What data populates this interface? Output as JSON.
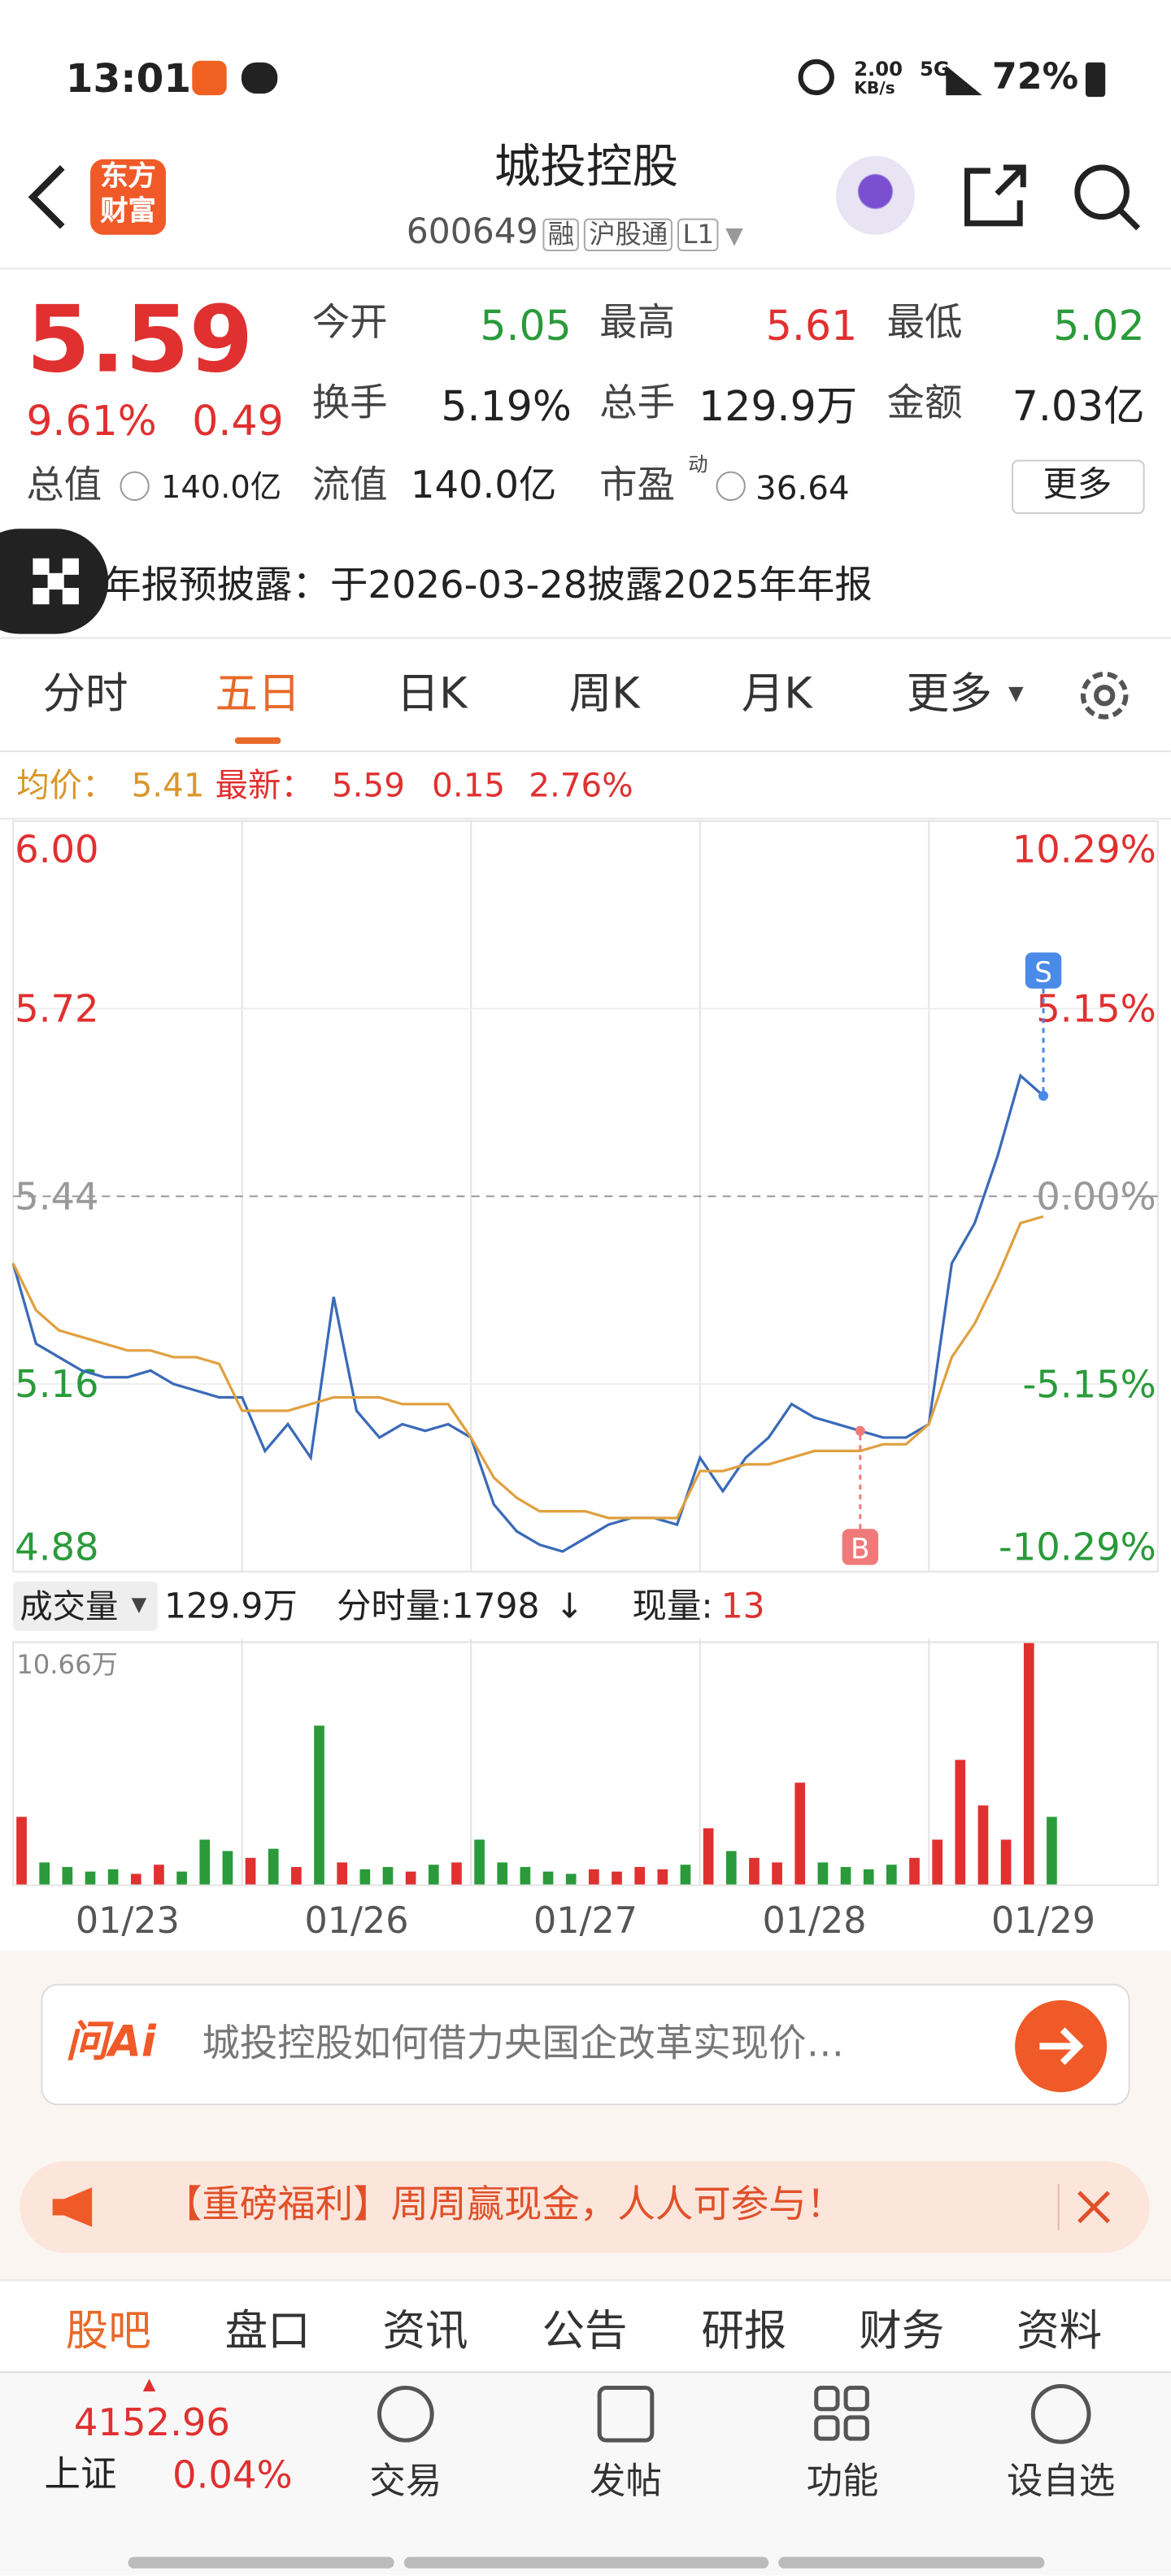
{
  "status_bar": {
    "time": "13:01",
    "speed": "2.00",
    "speed_unit": "KB/s",
    "network": "5G",
    "battery": "72%"
  },
  "header": {
    "logo_top": "东方",
    "logo_bottom": "财富",
    "title": "城投控股",
    "code": "600649",
    "tags": [
      "融",
      "沪股通",
      "L1"
    ]
  },
  "quote": {
    "price": "5.59",
    "change_pct": "9.61%",
    "change": "0.49",
    "fields": [
      {
        "label": "今开",
        "value": "5.05",
        "color": "#2a9a3a"
      },
      {
        "label": "最高",
        "value": "5.61",
        "color": "#e03030"
      },
      {
        "label": "最低",
        "value": "5.02",
        "color": "#2a9a3a"
      },
      {
        "label": "换手",
        "value": "5.19%",
        "color": "#222222"
      },
      {
        "label": "总手",
        "value": "129.9万",
        "color": "#222222"
      },
      {
        "label": "金额",
        "value": "7.03亿",
        "color": "#222222"
      }
    ],
    "total_value_label": "总值",
    "total_value": "140.0亿",
    "float_value_label": "流值",
    "float_value": "140.0亿",
    "pe_label": "市盈",
    "pe_sup": "动",
    "pe_value": "36.64",
    "more": "更多"
  },
  "notice": "年报预披露：于2026-03-28披露2025年年报",
  "tabs": {
    "items": [
      "分时",
      "五日",
      "日K",
      "周K",
      "月K",
      "更多"
    ],
    "active": 1
  },
  "price_info": {
    "avg_label": "均价：",
    "avg": "5.41",
    "latest_label": "最新：",
    "latest": "5.59",
    "change": "0.15",
    "change_pct": "2.76%"
  },
  "chart_data": [
    {
      "type": "line",
      "x": [
        0,
        1,
        2,
        3,
        4,
        5,
        6,
        7,
        8,
        9,
        10,
        11,
        12,
        13,
        14,
        15,
        16,
        17,
        18,
        19,
        20,
        21,
        22,
        23,
        24,
        25,
        26,
        27,
        28,
        29,
        30,
        31,
        32,
        33,
        34,
        35,
        36,
        37,
        38,
        39,
        40,
        41,
        42,
        43,
        44,
        45
      ],
      "xlim": [
        0,
        50
      ],
      "series": [
        {
          "name": "价格",
          "color": "#3a6ab8",
          "values": [
            5.34,
            5.22,
            5.2,
            5.18,
            5.17,
            5.17,
            5.18,
            5.16,
            5.15,
            5.14,
            5.14,
            5.06,
            5.1,
            5.05,
            5.29,
            5.12,
            5.08,
            5.1,
            5.09,
            5.1,
            5.08,
            4.98,
            4.94,
            4.92,
            4.91,
            4.93,
            4.95,
            4.96,
            4.96,
            4.95,
            5.05,
            5.0,
            5.05,
            5.08,
            5.13,
            5.11,
            5.1,
            5.09,
            5.08,
            5.08,
            5.1,
            5.34,
            5.4,
            5.5,
            5.62,
            5.59
          ]
        },
        {
          "name": "均价",
          "color": "#e0a040",
          "values": [
            5.34,
            5.27,
            5.24,
            5.23,
            5.22,
            5.21,
            5.21,
            5.2,
            5.2,
            5.19,
            5.12,
            5.12,
            5.12,
            5.13,
            5.14,
            5.14,
            5.14,
            5.13,
            5.13,
            5.13,
            5.08,
            5.02,
            4.99,
            4.97,
            4.97,
            4.97,
            4.96,
            4.96,
            4.96,
            4.96,
            5.03,
            5.03,
            5.04,
            5.04,
            5.05,
            5.06,
            5.06,
            5.06,
            5.07,
            5.07,
            5.1,
            5.2,
            5.25,
            5.32,
            5.4,
            5.41
          ]
        }
      ],
      "ylim": [
        4.88,
        6.0
      ],
      "yticks": [
        {
          "value": 6,
          "label": "6.00"
        },
        5.72,
        5.44,
        5.16,
        4.88
      ],
      "y2lim": [
        -10.29,
        10.29
      ],
      "y2ticks": [
        {
          "value": 10.29,
          "label": "10.29%"
        },
        {
          "value": 5.15,
          "label": "5.15%"
        },
        {
          "value": 0,
          "label": "0.00%"
        },
        {
          "value": -5.15,
          "label": "-5.15%"
        },
        {
          "value": -10.29,
          "label": "-10.29%"
        }
      ],
      "markers": [
        {
          "label": "S",
          "x": 45,
          "color": "#4a8ae8"
        },
        {
          "label": "B",
          "x": 37,
          "color": "#f07a7a"
        }
      ],
      "grid": true
    },
    {
      "type": "bar",
      "title": "成交量",
      "total": "129.9万",
      "tick_volume": "分时量:1798",
      "arrow": "↓",
      "current_label": "现量:",
      "current": "13",
      "categories": [
        "01/23",
        "01/26",
        "01/27",
        "01/28",
        "01/29"
      ],
      "x": [
        0,
        1,
        2,
        3,
        4,
        5,
        6,
        7,
        8,
        9,
        10,
        11,
        12,
        13,
        14,
        15,
        16,
        17,
        18,
        19,
        20,
        21,
        22,
        23,
        24,
        25,
        26,
        27,
        28,
        29,
        30,
        31,
        32,
        33,
        34,
        35,
        36,
        37,
        38,
        39,
        40,
        41,
        42,
        43,
        44,
        45
      ],
      "xlim": [
        0,
        50
      ],
      "values": [
        3.0,
        1.0,
        0.8,
        0.6,
        0.7,
        0.5,
        0.9,
        0.6,
        2.0,
        1.5,
        1.2,
        1.6,
        0.8,
        7.0,
        1.0,
        0.7,
        0.8,
        0.6,
        0.9,
        1.0,
        2.0,
        1.0,
        0.8,
        0.6,
        0.5,
        0.7,
        0.6,
        0.8,
        0.7,
        0.9,
        2.5,
        1.5,
        1.2,
        1.0,
        4.5,
        1.0,
        0.8,
        0.7,
        0.9,
        1.2,
        2.0,
        5.5,
        3.5,
        2.0,
        10.66,
        3.0
      ],
      "ylim": [
        0,
        10.66
      ],
      "yticks": [
        {
          "value": 10.66,
          "label": "10.66万"
        }
      ],
      "up_color": "#e03030",
      "down_color": "#2a9a3a"
    }
  ],
  "ai": {
    "logo": "问Ai",
    "placeholder": "城投控股如何借力央国企改革实现价…"
  },
  "banner": "【重磅福利】周周赢现金，人人可参与！",
  "nav": {
    "items": [
      "股吧",
      "盘口",
      "资讯",
      "公告",
      "研报",
      "财务",
      "资料"
    ],
    "active": 0
  },
  "bottom": {
    "index_value": "4152.96",
    "index_name": "上证",
    "index_change": "0.04%",
    "items": [
      "交易",
      "发帖",
      "功能",
      "设自选"
    ]
  }
}
